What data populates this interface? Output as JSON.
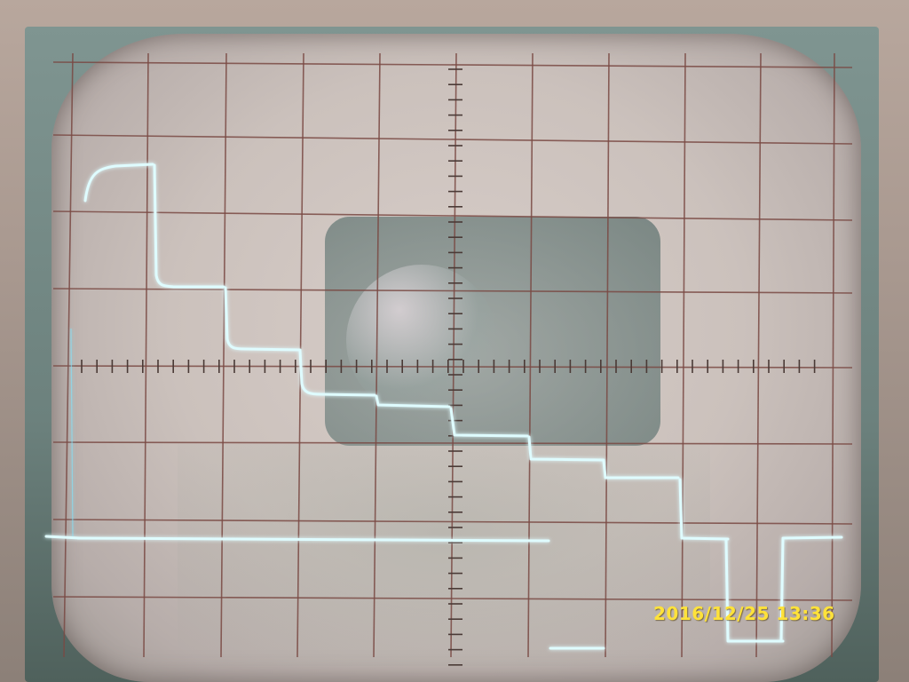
{
  "photo": {
    "subject": "oscilloscope-staircase-waveform",
    "timestamp": "2016/12/25 13:36"
  },
  "colors": {
    "grid": "#7a4a44",
    "trace": "#dffcff",
    "trace_glow": "#7fe6ff",
    "timestamp": "#ffe23a"
  }
}
